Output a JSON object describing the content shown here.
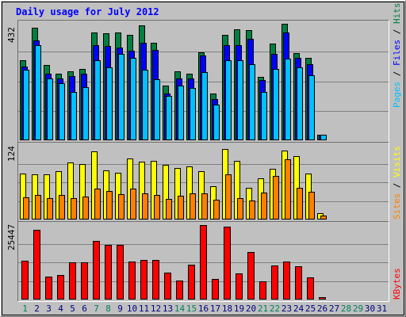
{
  "chart_data": [
    {
      "type": "bar",
      "title": "Daily usage for July 2012",
      "ymax_label": "432",
      "legend": [
        {
          "name": "Pages",
          "color": "#00c0ff"
        },
        {
          "name": "Files",
          "color": "#0000ff"
        },
        {
          "name": "Hits",
          "color": "#008040"
        }
      ],
      "separator": " / ",
      "ylim": [
        0,
        432
      ],
      "categories": [
        "1",
        "2",
        "3",
        "4",
        "5",
        "6",
        "7",
        "8",
        "9",
        "10",
        "11",
        "12",
        "13",
        "14",
        "15",
        "16",
        "17",
        "18",
        "19",
        "20",
        "21",
        "22",
        "23",
        "24",
        "25",
        "26",
        "27",
        "28",
        "29",
        "30",
        "31"
      ],
      "series": [
        {
          "name": "Hits",
          "values": [
            292,
            412,
            276,
            243,
            252,
            260,
            395,
            392,
            395,
            387,
            421,
            357,
            201,
            253,
            243,
            321,
            171,
            385,
            407,
            403,
            231,
            353,
            425,
            319,
            302,
            21,
            0,
            0,
            0,
            0,
            0
          ]
        },
        {
          "name": "Files",
          "values": [
            271,
            366,
            244,
            226,
            234,
            244,
            347,
            346,
            339,
            327,
            357,
            331,
            171,
            226,
            226,
            311,
            150,
            348,
            348,
            372,
            220,
            317,
            395,
            301,
            277,
            21,
            0,
            0,
            0,
            0,
            0
          ]
        },
        {
          "name": "Pages",
          "values": [
            257,
            348,
            226,
            208,
            177,
            195,
            292,
            266,
            317,
            301,
            257,
            223,
            162,
            199,
            190,
            248,
            130,
            294,
            293,
            279,
            177,
            260,
            299,
            267,
            237,
            21,
            0,
            0,
            0,
            0,
            0
          ]
        }
      ]
    },
    {
      "type": "bar",
      "ymax_label": "124",
      "legend": [
        {
          "name": "Sites",
          "color": "#ff8000"
        },
        {
          "name": "Visits",
          "color": "#ffff00"
        }
      ],
      "separator": " / ",
      "ylim": [
        0,
        124
      ],
      "categories": [
        "1",
        "2",
        "3",
        "4",
        "5",
        "6",
        "7",
        "8",
        "9",
        "10",
        "11",
        "12",
        "13",
        "14",
        "15",
        "16",
        "17",
        "18",
        "19",
        "20",
        "21",
        "22",
        "23",
        "24",
        "25",
        "26",
        "27",
        "28",
        "29",
        "30",
        "31"
      ],
      "series": [
        {
          "name": "Visits",
          "values": [
            77,
            75,
            75,
            80,
            95,
            92,
            114,
            82,
            78,
            102,
            96,
            98,
            91,
            86,
            89,
            80,
            56,
            117,
            97,
            53,
            69,
            85,
            115,
            105,
            77,
            11,
            0,
            0,
            0,
            0,
            0
          ]
        },
        {
          "name": "Sites",
          "values": [
            37,
            41,
            35,
            41,
            35,
            38,
            51,
            48,
            42,
            52,
            43,
            41,
            34,
            39,
            44,
            43,
            33,
            75,
            36,
            32,
            45,
            72,
            100,
            53,
            46,
            6,
            0,
            0,
            0,
            0,
            0
          ]
        }
      ]
    },
    {
      "type": "bar",
      "ymax_label": "25447",
      "legend": [
        {
          "name": "KBytes",
          "color": "#ff0000"
        }
      ],
      "ylim": [
        0,
        25447
      ],
      "categories": [
        "1",
        "2",
        "3",
        "4",
        "5",
        "6",
        "7",
        "8",
        "9",
        "10",
        "11",
        "12",
        "13",
        "14",
        "15",
        "16",
        "17",
        "18",
        "19",
        "20",
        "21",
        "22",
        "23",
        "24",
        "25",
        "26",
        "27",
        "28",
        "29",
        "30",
        "31"
      ],
      "series": [
        {
          "name": "KBytes",
          "values": [
            13400,
            23700,
            7800,
            8300,
            12700,
            12600,
            19900,
            18600,
            18700,
            13100,
            13600,
            13500,
            9300,
            6500,
            11800,
            25447,
            7000,
            25000,
            9000,
            16200,
            6300,
            11600,
            12900,
            11500,
            7700,
            900,
            0,
            0,
            0,
            0,
            0
          ]
        }
      ]
    }
  ],
  "weekend_days": [
    "1",
    "7",
    "8",
    "14",
    "15",
    "21",
    "22",
    "28",
    "29"
  ],
  "colors": {
    "background": "#c0c0c0",
    "title": "#0000ff",
    "weekday": "#000080",
    "weekend": "#00805c"
  }
}
